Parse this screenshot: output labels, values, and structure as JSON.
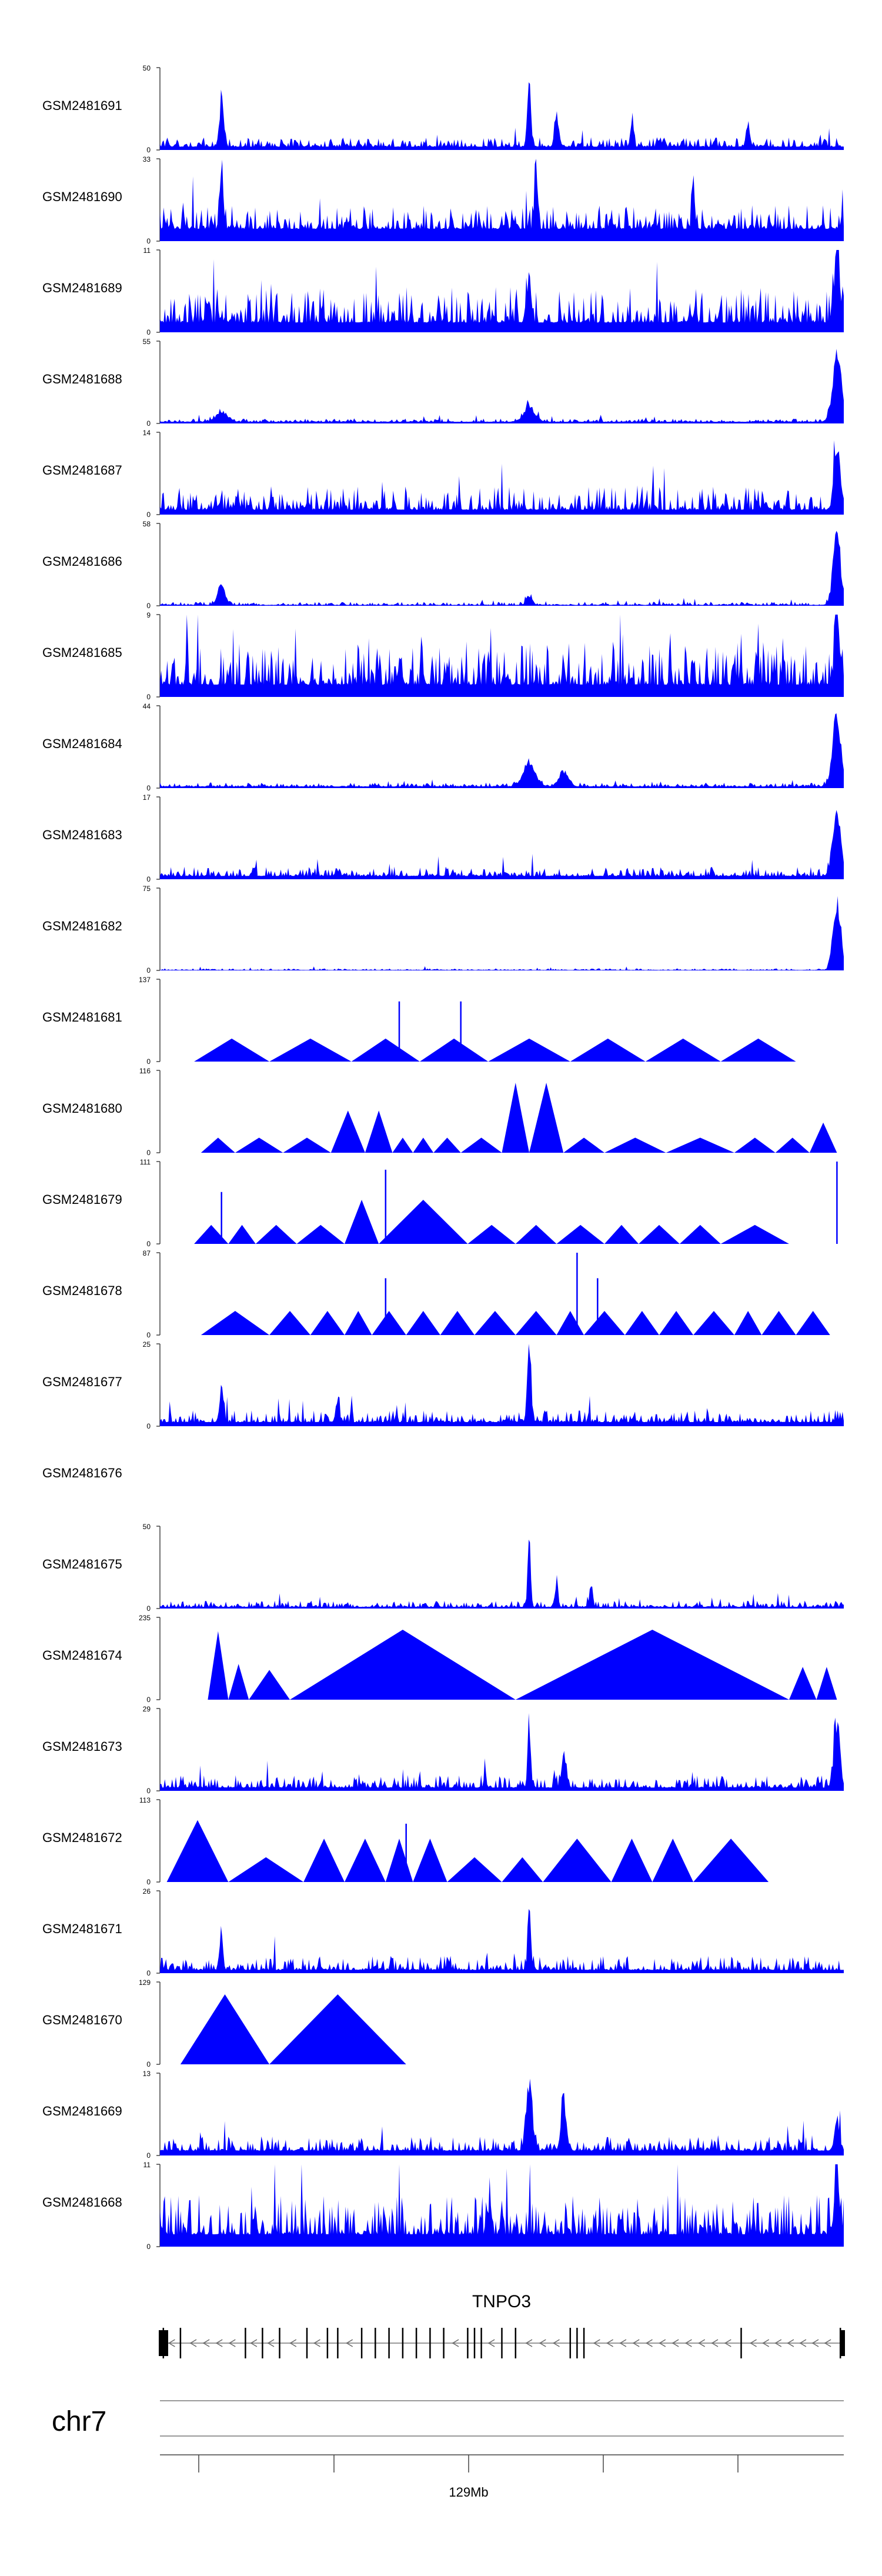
{
  "colors": {
    "track_fill": "#0000ff",
    "axis": "#444444",
    "gene": "#000000",
    "intron": "#999999"
  },
  "chart_data": {
    "type": "area",
    "title": "",
    "xlabel": "",
    "ylabel": "",
    "x_unit": "position (arbitrary units, 0-100 across locus)",
    "tracks": [
      {
        "name": "GSM2481691",
        "ymax_label": "50",
        "ymin_label": "0",
        "ymax": 50,
        "pattern": "noise",
        "baseline": 0.04,
        "noise": 0.12,
        "peaks": [
          [
            9,
            34,
            0.4
          ],
          [
            54,
            50,
            0.35
          ],
          [
            58,
            22,
            0.4
          ],
          [
            69,
            18,
            0.3
          ],
          [
            86,
            14,
            0.4
          ]
        ]
      },
      {
        "name": "GSM2481690",
        "ymax_label": "33",
        "ymin_label": "0",
        "ymax": 33,
        "pattern": "noise",
        "baseline": 0.15,
        "noise": 0.3,
        "peaks": [
          [
            9,
            32,
            0.3
          ],
          [
            55,
            32,
            0.3
          ],
          [
            78,
            22,
            0.3
          ]
        ]
      },
      {
        "name": "GSM2481689",
        "ymax_label": "11",
        "ymin_label": "0",
        "ymax": 11,
        "pattern": "noise",
        "baseline": 0.12,
        "noise": 0.45,
        "peaks": [
          [
            54,
            8,
            0.4
          ],
          [
            99,
            11,
            0.6
          ]
        ]
      },
      {
        "name": "GSM2481688",
        "ymax_label": "55",
        "ymin_label": "0",
        "ymax": 55,
        "pattern": "noise",
        "baseline": 0.02,
        "noise": 0.04,
        "peaks": [
          [
            9,
            8,
            1.2
          ],
          [
            54,
            12,
            1.2
          ],
          [
            99,
            55,
            0.9
          ]
        ]
      },
      {
        "name": "GSM2481687",
        "ymax_label": "14",
        "ymin_label": "0",
        "ymax": 14,
        "pattern": "noise",
        "baseline": 0.06,
        "noise": 0.3,
        "peaks": [
          [
            99,
            14,
            0.6
          ]
        ]
      },
      {
        "name": "GSM2481686",
        "ymax_label": "58",
        "ymin_label": "0",
        "ymax": 58,
        "pattern": "noise",
        "baseline": 0.01,
        "noise": 0.04,
        "peaks": [
          [
            9,
            16,
            0.8
          ],
          [
            54,
            8,
            0.6
          ],
          [
            99,
            58,
            0.8
          ]
        ]
      },
      {
        "name": "GSM2481685",
        "ymax_label": "9",
        "ymin_label": "0",
        "ymax": 9,
        "pattern": "noise",
        "baseline": 0.15,
        "noise": 0.55,
        "peaks": [
          [
            99,
            9,
            0.5
          ]
        ]
      },
      {
        "name": "GSM2481684",
        "ymax_label": "44",
        "ymin_label": "0",
        "ymax": 44,
        "pattern": "noise",
        "baseline": 0.02,
        "noise": 0.05,
        "peaks": [
          [
            54,
            15,
            1.3
          ],
          [
            59,
            9,
            1.0
          ],
          [
            99,
            44,
            0.9
          ]
        ]
      },
      {
        "name": "GSM2481683",
        "ymax_label": "17",
        "ymin_label": "0",
        "ymax": 17,
        "pattern": "noise",
        "baseline": 0.04,
        "noise": 0.12,
        "peaks": [
          [
            99,
            17,
            0.8
          ]
        ]
      },
      {
        "name": "GSM2481682",
        "ymax_label": "75",
        "ymin_label": "0",
        "ymax": 75,
        "pattern": "noise",
        "baseline": 0.005,
        "noise": 0.02,
        "peaks": [
          [
            99,
            75,
            0.8
          ]
        ]
      },
      {
        "name": "GSM2481681",
        "ymax_label": "137",
        "ymin_label": "0",
        "ymax": 137,
        "pattern": "triangles",
        "triangles": [
          [
            5,
            45
          ],
          [
            16,
            45
          ],
          [
            28,
            45
          ],
          [
            38,
            45
          ],
          [
            48,
            45
          ],
          [
            60,
            45
          ],
          [
            71,
            45
          ],
          [
            82,
            45
          ],
          [
            93,
            45
          ]
        ],
        "spikes": [
          [
            35,
            100
          ],
          [
            44,
            100
          ]
        ]
      },
      {
        "name": "GSM2481680",
        "ymax_label": "116",
        "ymin_label": "0",
        "ymax": 116,
        "pattern": "triangles",
        "triangles": [
          [
            6,
            25
          ],
          [
            11,
            25
          ],
          [
            18,
            25
          ],
          [
            25,
            25
          ],
          [
            30,
            70
          ],
          [
            34,
            25
          ],
          [
            37,
            25
          ],
          [
            40,
            25
          ],
          [
            44,
            25
          ],
          [
            50,
            25
          ],
          [
            54,
            116
          ],
          [
            59,
            25
          ],
          [
            65,
            25
          ],
          [
            74,
            25
          ],
          [
            84,
            25
          ],
          [
            90,
            25
          ],
          [
            95,
            25
          ],
          [
            99,
            50
          ]
        ],
        "spikes": []
      },
      {
        "name": "GSM2481679",
        "ymax_label": "111",
        "ymin_label": "0",
        "ymax": 111,
        "pattern": "triangles",
        "triangles": [
          [
            5,
            30
          ],
          [
            10,
            30
          ],
          [
            14,
            30
          ],
          [
            20,
            30
          ],
          [
            27,
            30
          ],
          [
            32,
            70
          ],
          [
            45,
            30
          ],
          [
            52,
            30
          ],
          [
            58,
            30
          ],
          [
            65,
            30
          ],
          [
            70,
            30
          ],
          [
            76,
            30
          ],
          [
            82,
            30
          ],
          [
            92,
            30
          ]
        ],
        "spikes": [
          [
            9,
            70
          ],
          [
            33,
            100
          ],
          [
            99,
            111
          ]
        ]
      },
      {
        "name": "GSM2481678",
        "ymax_label": "87",
        "ymin_label": "0",
        "ymax": 87,
        "pattern": "triangles",
        "triangles": [
          [
            6,
            30
          ],
          [
            16,
            30
          ],
          [
            22,
            30
          ],
          [
            27,
            30
          ],
          [
            31,
            30
          ],
          [
            36,
            30
          ],
          [
            41,
            30
          ],
          [
            46,
            30
          ],
          [
            52,
            30
          ],
          [
            58,
            30
          ],
          [
            62,
            30
          ],
          [
            68,
            30
          ],
          [
            73,
            30
          ],
          [
            78,
            30
          ],
          [
            84,
            30
          ],
          [
            88,
            30
          ],
          [
            93,
            30
          ],
          [
            98,
            30
          ]
        ],
        "spikes": [
          [
            33,
            60
          ],
          [
            61,
            87
          ],
          [
            64,
            60
          ]
        ]
      },
      {
        "name": "GSM2481677",
        "ymax_label": "25",
        "ymin_label": "0",
        "ymax": 25,
        "pattern": "noise",
        "baseline": 0.05,
        "noise": 0.15,
        "peaks": [
          [
            9,
            14,
            0.4
          ],
          [
            54,
            25,
            0.4
          ],
          [
            26,
            7,
            0.4
          ]
        ]
      },
      {
        "name": "GSM2481676",
        "ymax_label": "",
        "ymin_label": "",
        "ymax": 0,
        "pattern": "empty"
      },
      {
        "name": "GSM2481675",
        "ymax_label": "50",
        "ymin_label": "0",
        "ymax": 50,
        "pattern": "noise",
        "baseline": 0.02,
        "noise": 0.08,
        "peaks": [
          [
            54,
            50,
            0.3
          ],
          [
            58,
            20,
            0.3
          ],
          [
            63,
            15,
            0.3
          ]
        ]
      },
      {
        "name": "GSM2481674",
        "ymax_label": "235",
        "ymin_label": "0",
        "ymax": 235,
        "pattern": "triangles",
        "triangles": [
          [
            7,
            230
          ],
          [
            10,
            120
          ],
          [
            13,
            80
          ],
          [
            19,
            100
          ],
          [
            52,
            235
          ],
          [
            92,
            110
          ],
          [
            96,
            110
          ],
          [
            99,
            110
          ]
        ],
        "spikes": []
      },
      {
        "name": "GSM2481673",
        "ymax_label": "29",
        "ymin_label": "0",
        "ymax": 29,
        "pattern": "noise",
        "baseline": 0.04,
        "noise": 0.16,
        "peaks": [
          [
            54,
            29,
            0.3
          ],
          [
            99,
            29,
            0.6
          ],
          [
            59,
            14,
            0.4
          ]
        ]
      },
      {
        "name": "GSM2481672",
        "ymax_label": "113",
        "ymin_label": "0",
        "ymax": 113,
        "pattern": "triangles",
        "triangles": [
          [
            1,
            100
          ],
          [
            10,
            40
          ],
          [
            21,
            40
          ],
          [
            27,
            70
          ],
          [
            33,
            40
          ],
          [
            37,
            70
          ],
          [
            42,
            40
          ],
          [
            50,
            40
          ],
          [
            56,
            40
          ],
          [
            66,
            70
          ],
          [
            72,
            40
          ],
          [
            78,
            70
          ],
          [
            89,
            40
          ]
        ],
        "spikes": [
          [
            36,
            80
          ]
        ]
      },
      {
        "name": "GSM2481671",
        "ymax_label": "26",
        "ymin_label": "0",
        "ymax": 26,
        "pattern": "noise",
        "baseline": 0.04,
        "noise": 0.18,
        "peaks": [
          [
            54,
            26,
            0.3
          ],
          [
            9,
            14,
            0.3
          ]
        ]
      },
      {
        "name": "GSM2481670",
        "ymax_label": "129",
        "ymin_label": "0",
        "ymax": 129,
        "pattern": "triangles",
        "triangles": [
          [
            3,
            129
          ],
          [
            16,
            129
          ],
          [
            36,
            129
          ]
        ],
        "spikes": []
      },
      {
        "name": "GSM2481669",
        "ymax_label": "13",
        "ymin_label": "0",
        "ymax": 13,
        "pattern": "noise",
        "baseline": 0.06,
        "noise": 0.18,
        "peaks": [
          [
            54,
            13,
            0.6
          ],
          [
            59,
            9,
            0.5
          ],
          [
            99,
            6,
            0.5
          ]
        ]
      },
      {
        "name": "GSM2481668",
        "ymax_label": "11",
        "ymin_label": "0",
        "ymax": 11,
        "pattern": "noise",
        "baseline": 0.15,
        "noise": 0.5,
        "peaks": [
          [
            99,
            11,
            0.5
          ]
        ]
      }
    ],
    "gene": {
      "name": "TNPO3",
      "strand": "-",
      "exons": [
        0.5,
        3,
        12.5,
        15,
        17.5,
        21.5,
        24.5,
        26,
        29.5,
        31.5,
        33.5,
        35.5,
        37.5,
        39.5,
        41.5,
        45,
        46,
        47,
        50,
        52,
        60,
        61,
        62,
        85,
        99.5
      ]
    },
    "chromosome": "chr7",
    "axis_tick_label": "129Mb",
    "axis_label_tick_index": 2
  }
}
